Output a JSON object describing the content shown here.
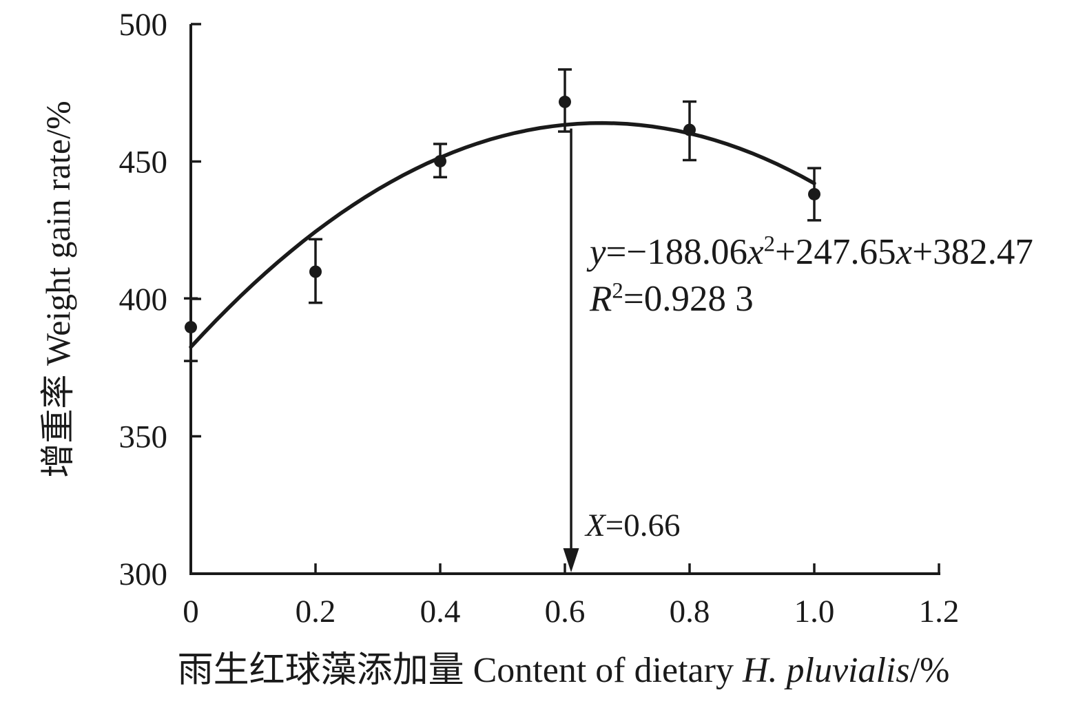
{
  "figure": {
    "background": "#ffffff",
    "ink_color": "#1a1a1a"
  },
  "chart_data": {
    "type": "scatter",
    "title": "",
    "grid": false,
    "legend": false,
    "x_axis": {
      "label_parts": [
        {
          "t": "雨生红球藻添加量 Content of dietary "
        },
        {
          "t": "H. pluvialis",
          "i": true
        },
        {
          "t": "/%"
        }
      ],
      "range": [
        0,
        1.2
      ],
      "ticks": [
        0,
        0.2,
        0.4,
        0.6,
        0.8,
        1.0,
        1.2
      ],
      "tick_labels": [
        "0",
        "0.2",
        "0.4",
        "0.6",
        "0.8",
        "1.0",
        "1.2"
      ]
    },
    "y_axis": {
      "label_parts": [
        {
          "t": "增重率 Weight gain rate/%"
        }
      ],
      "range": [
        300,
        500
      ],
      "ticks": [
        300,
        350,
        400,
        450,
        500
      ],
      "tick_labels": [
        "300",
        "350",
        "400",
        "450",
        "500"
      ]
    },
    "series": [
      {
        "name": "weight gain rate",
        "marker": "filled-circle",
        "x": [
          0,
          0.2,
          0.4,
          0.6,
          0.8,
          1.0
        ],
        "y": [
          389.7,
          409.9,
          450.1,
          471.7,
          461.5,
          438.1
        ],
        "err_up": [
          10.5,
          11.8,
          6.3,
          11.8,
          10.3,
          9.5
        ],
        "err_down": [
          12.3,
          11.3,
          5.8,
          10.8,
          11.0,
          9.5
        ]
      }
    ],
    "fit": {
      "type": "quadratic",
      "coefficients": {
        "a": -188.06,
        "b": 247.65,
        "c": 382.47
      },
      "x_range": [
        0,
        1.0
      ],
      "equation_parts": [
        {
          "t": "y",
          "i": true
        },
        {
          "t": "=−188.06"
        },
        {
          "t": "x",
          "i": true
        },
        {
          "t": "2",
          "sup": true
        },
        {
          "t": "+247.65"
        },
        {
          "t": "x",
          "i": true
        },
        {
          "t": "+382.47"
        }
      ],
      "r_squared_parts": [
        {
          "t": "R",
          "i": true
        },
        {
          "t": "2",
          "sup": true
        },
        {
          "t": "=0.928 3"
        }
      ]
    },
    "annotation": {
      "label_parts": [
        {
          "t": "X",
          "i": true
        },
        {
          "t": "=0.66"
        }
      ],
      "arrow_x_data": 0.61,
      "arrow_top_value": 462
    }
  }
}
